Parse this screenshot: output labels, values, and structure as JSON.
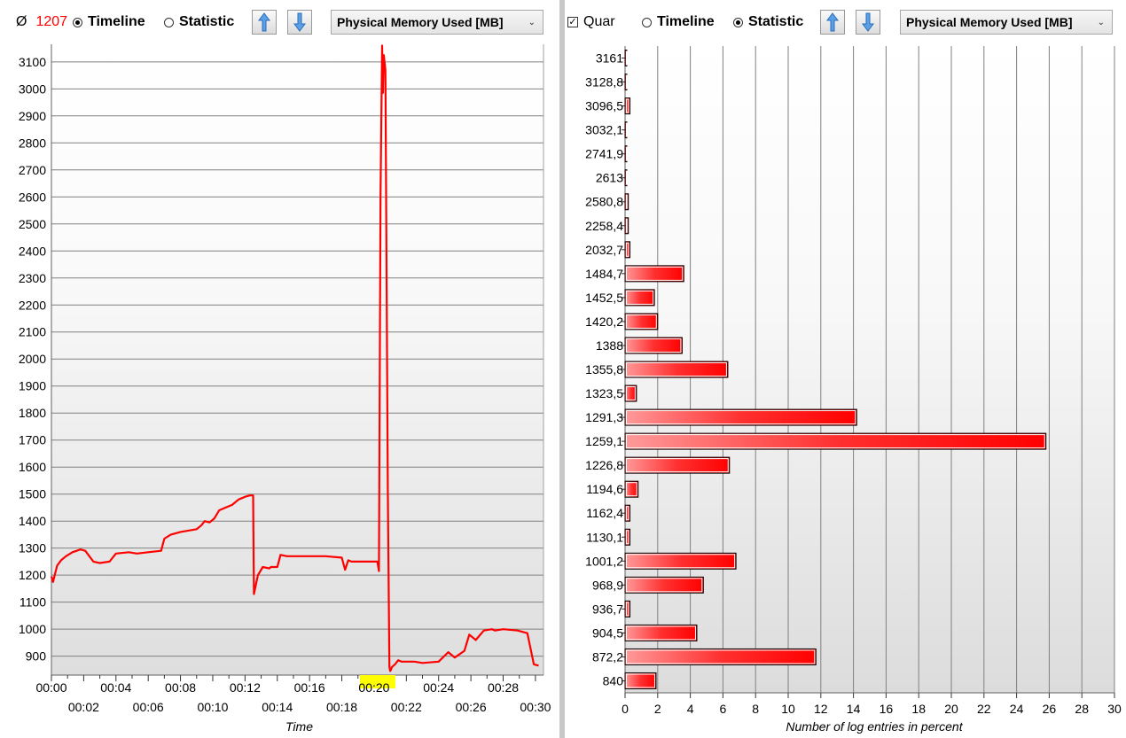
{
  "left_toolbar": {
    "avg_symbol": "Ø",
    "avg_value": "1207",
    "timeline_label": "Timeline",
    "statistic_label": "Statistic",
    "metric_select": "Physical Memory Used [MB]"
  },
  "right_toolbar": {
    "quar_label": "Quar",
    "timeline_label": "Timeline",
    "statistic_label": "Statistic",
    "metric_select": "Physical Memory Used [MB]"
  },
  "colors": {
    "series": "#ff0000",
    "highlight": "#ffff00",
    "grid": "#808080",
    "accent_avg": "#ff0000"
  },
  "chart_data": [
    {
      "type": "line",
      "title": "",
      "xlabel": "Time",
      "ylabel": "",
      "ylim": [
        830,
        3165
      ],
      "xlim_minutes": [
        0,
        30.5
      ],
      "y_ticks": [
        900,
        1000,
        1100,
        1200,
        1300,
        1400,
        1500,
        1600,
        1700,
        1800,
        1900,
        2000,
        2100,
        2200,
        2300,
        2400,
        2500,
        2600,
        2700,
        2800,
        2900,
        3000,
        3100
      ],
      "x_ticks_top": [
        "00:00",
        "00:04",
        "00:08",
        "00:12",
        "00:16",
        "00:20",
        "00:24",
        "00:28"
      ],
      "x_ticks_bottom": [
        "00:02",
        "00:06",
        "00:10",
        "00:14",
        "00:18",
        "00:22",
        "00:26",
        "00:30"
      ],
      "x_ticks_top_minutes": [
        0,
        4,
        8,
        12,
        16,
        20,
        24,
        28
      ],
      "x_ticks_bottom_minutes": [
        2,
        6,
        10,
        14,
        18,
        22,
        26,
        30
      ],
      "highlighted_tick": "00:20",
      "grid": true,
      "series": [
        {
          "x_minutes": [
            0,
            0.1,
            0.35,
            0.6,
            0.9,
            1.3,
            1.8,
            2.1,
            2.6,
            3.0,
            3.6,
            4.0,
            4.8,
            5.3,
            6.0,
            6.8,
            7.0,
            7.4,
            8.0,
            9.0,
            9.3,
            9.5,
            9.8,
            10.1,
            10.4,
            10.8,
            11.2,
            11.6,
            12.0,
            12.3,
            12.5,
            12.55,
            12.8,
            13.1,
            13.5,
            13.6,
            14.0,
            14.2,
            14.6,
            15.5,
            17.0,
            18.0,
            18.2,
            18.4,
            18.6,
            20.2,
            20.3,
            20.4,
            20.5,
            20.55,
            20.6,
            20.7,
            20.8,
            20.85,
            20.95,
            21.0,
            21.05,
            21.1,
            21.3,
            21.5,
            21.7,
            22.0,
            22.5,
            23.0,
            24.0,
            24.6,
            25.0,
            25.6,
            25.9,
            26.3,
            26.8,
            27.3,
            27.5,
            28.0,
            28.9,
            29.5,
            29.9,
            30.2
          ],
          "y": [
            1195,
            1175,
            1235,
            1255,
            1270,
            1285,
            1295,
            1290,
            1250,
            1245,
            1250,
            1280,
            1285,
            1280,
            1285,
            1290,
            1335,
            1350,
            1360,
            1370,
            1385,
            1400,
            1395,
            1410,
            1440,
            1450,
            1460,
            1480,
            1490,
            1495,
            1495,
            1130,
            1200,
            1230,
            1225,
            1230,
            1230,
            1275,
            1270,
            1270,
            1270,
            1265,
            1220,
            1255,
            1250,
            1250,
            1215,
            2610,
            3160,
            2985,
            3125,
            3070,
            2035,
            1520,
            860,
            845,
            850,
            860,
            870,
            885,
            880,
            880,
            880,
            875,
            880,
            915,
            895,
            920,
            980,
            960,
            995,
            1000,
            995,
            1000,
            995,
            985,
            870,
            865
          ]
        }
      ]
    },
    {
      "type": "bar",
      "orientation": "horizontal",
      "title": "",
      "xlabel": "Number of log entries in percent",
      "ylabel": "",
      "xlim": [
        0,
        30
      ],
      "x_ticks": [
        0,
        2,
        4,
        6,
        8,
        10,
        12,
        14,
        16,
        18,
        20,
        22,
        24,
        26,
        28,
        30
      ],
      "grid": true,
      "categories": [
        "3161",
        "3128,8",
        "3096,5",
        "3032,1",
        "2741,9",
        "2613",
        "2580,8",
        "2258,4",
        "2032,7",
        "1484,7",
        "1452,5",
        "1420,2",
        "1388",
        "1355,8",
        "1323,5",
        "1291,3",
        "1259,1",
        "1226,8",
        "1194,6",
        "1162,4",
        "1130,1",
        "1001,2",
        "968,9",
        "936,7",
        "904,5",
        "872,2",
        "840"
      ],
      "values": [
        0.1,
        0.1,
        0.3,
        0.1,
        0.1,
        0.1,
        0.2,
        0.2,
        0.3,
        3.6,
        1.8,
        2.0,
        3.5,
        6.3,
        0.7,
        14.2,
        25.8,
        6.4,
        0.8,
        0.3,
        0.3,
        6.8,
        4.8,
        0.3,
        4.4,
        11.7,
        1.9
      ]
    }
  ]
}
